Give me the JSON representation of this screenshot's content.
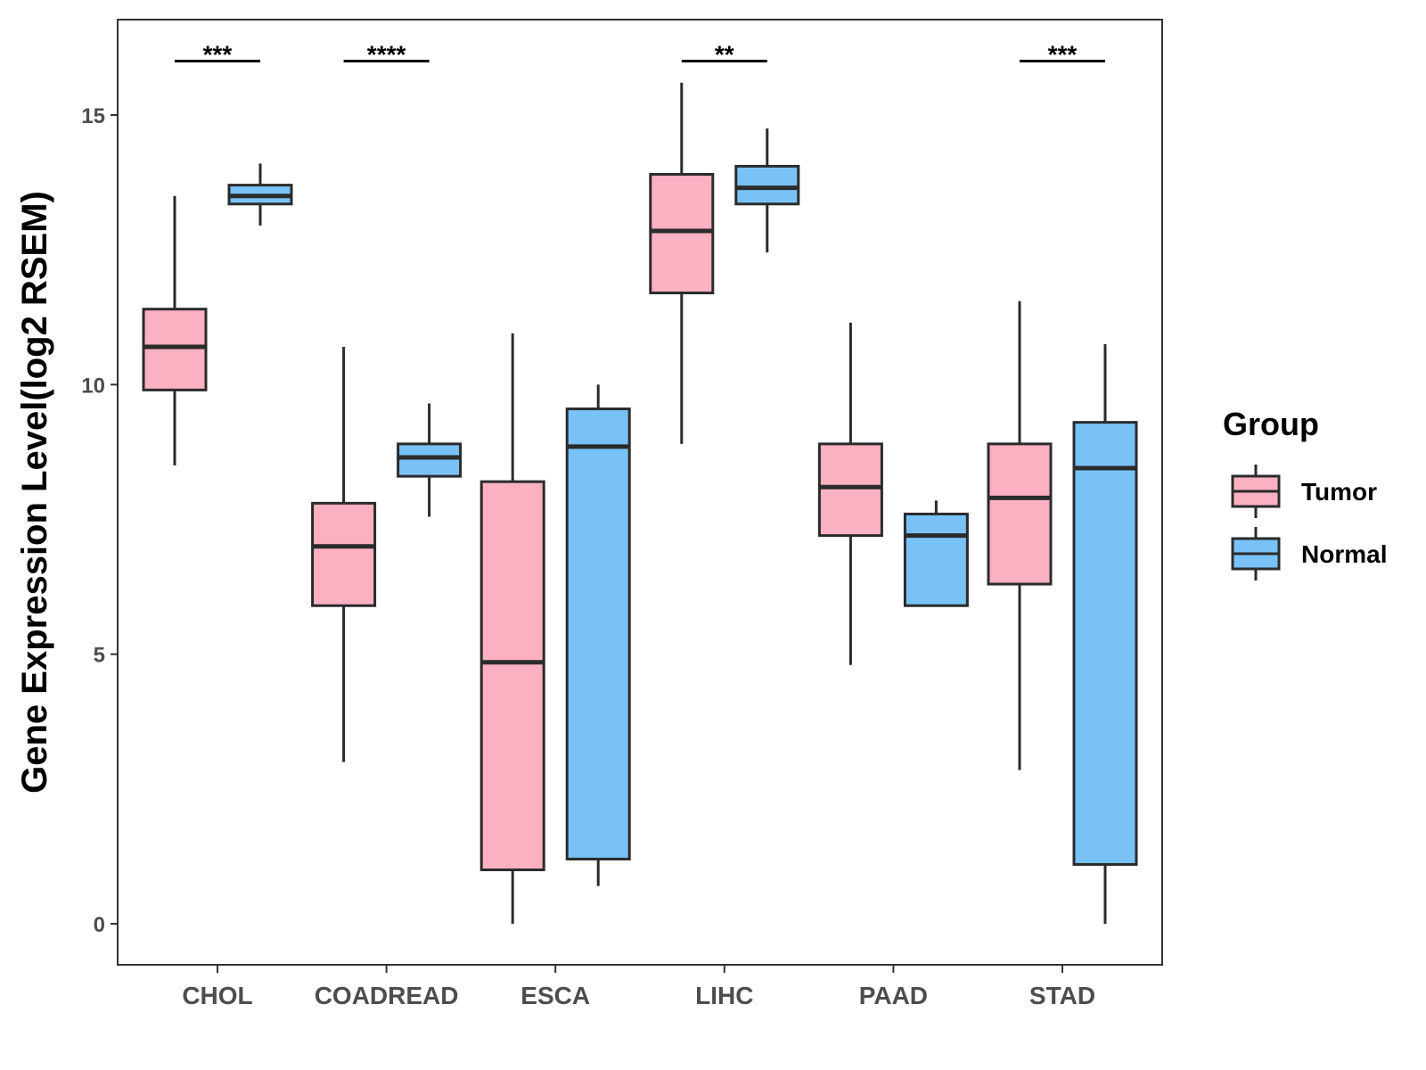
{
  "chart_data": {
    "type": "box",
    "title": "",
    "xlabel": "",
    "ylabel": "Gene Expression Level(log2 RSEM)",
    "ylim": [
      -0.8,
      16.7
    ],
    "yticks": [
      0,
      5,
      10,
      15
    ],
    "categories": [
      "CHOL",
      "COADREAD",
      "ESCA",
      "LIHC",
      "PAAD",
      "STAD"
    ],
    "legend": {
      "title": "Group",
      "position": "right",
      "entries": [
        {
          "name": "Tumor",
          "color": "#fbb1c2"
        },
        {
          "name": "Normal",
          "color": "#78c2f8"
        }
      ]
    },
    "series": [
      {
        "name": "Tumor",
        "color": "#fbb1c2",
        "boxes": [
          {
            "min": 8.5,
            "q1": 9.9,
            "median": 10.7,
            "q3": 11.4,
            "max": 13.5
          },
          {
            "min": 3.0,
            "q1": 5.9,
            "median": 7.0,
            "q3": 7.8,
            "max": 10.7
          },
          {
            "min": 0.0,
            "q1": 1.0,
            "median": 4.85,
            "q3": 8.2,
            "max": 10.95
          },
          {
            "min": 8.9,
            "q1": 11.7,
            "median": 12.85,
            "q3": 13.9,
            "max": 15.6
          },
          {
            "min": 4.8,
            "q1": 7.2,
            "median": 8.1,
            "q3": 8.9,
            "max": 11.15
          },
          {
            "min": 2.85,
            "q1": 6.3,
            "median": 7.9,
            "q3": 8.9,
            "max": 11.55
          }
        ]
      },
      {
        "name": "Normal",
        "color": "#78c2f8",
        "boxes": [
          {
            "min": 12.95,
            "q1": 13.35,
            "median": 13.5,
            "q3": 13.7,
            "max": 14.1
          },
          {
            "min": 7.55,
            "q1": 8.3,
            "median": 8.65,
            "q3": 8.9,
            "max": 9.65
          },
          {
            "min": 0.7,
            "q1": 1.2,
            "median": 8.85,
            "q3": 9.55,
            "max": 10.0
          },
          {
            "min": 12.45,
            "q1": 13.35,
            "median": 13.65,
            "q3": 14.05,
            "max": 14.75
          },
          {
            "min": 5.9,
            "q1": 5.9,
            "median": 7.2,
            "q3": 7.6,
            "max": 7.85
          },
          {
            "min": 0.0,
            "q1": 1.1,
            "median": 8.45,
            "q3": 9.3,
            "max": 10.75
          }
        ]
      }
    ],
    "significance": [
      {
        "category": "CHOL",
        "label": "***"
      },
      {
        "category": "COADREAD",
        "label": "****"
      },
      {
        "category": "LIHC",
        "label": "**"
      },
      {
        "category": "STAD",
        "label": "***"
      }
    ],
    "significance_y": 16.0
  }
}
